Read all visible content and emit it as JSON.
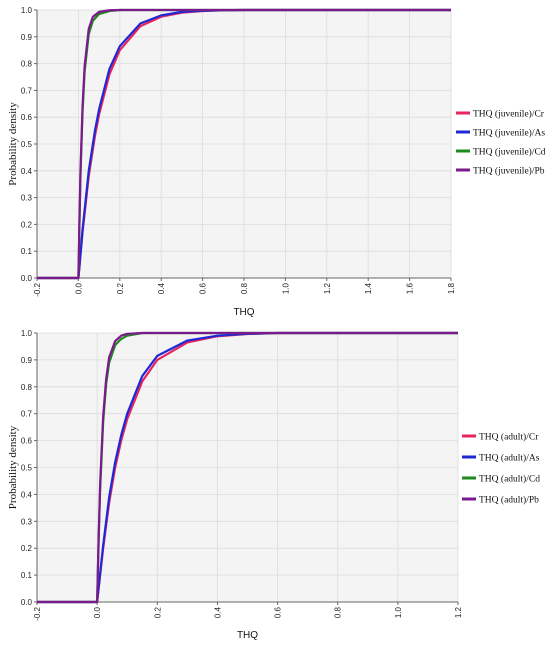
{
  "chart_data": [
    {
      "type": "line",
      "xlabel": "THQ",
      "ylabel": "Probability density",
      "xlim": [
        -0.2,
        1.8
      ],
      "ylim": [
        0,
        1
      ],
      "xticks": [
        -0.2,
        0.0,
        0.2,
        0.4,
        0.6,
        0.8,
        1.0,
        1.2,
        1.4,
        1.6,
        1.8
      ],
      "xtick_labels": [
        "-0.2",
        "0.0",
        "0.2",
        "0.4",
        "0.6",
        "0.8",
        "1.0",
        "1.2",
        "1.4",
        "1.6",
        "1.8"
      ],
      "yticks": [
        0,
        0.1,
        0.2,
        0.3,
        0.4,
        0.5,
        0.6,
        0.7,
        0.8,
        0.9,
        1.0
      ],
      "ytick_labels": [
        "0.0",
        "0.1",
        "0.2",
        "0.3",
        "0.4",
        "0.5",
        "0.6",
        "0.7",
        "0.8",
        "0.9",
        "1.0"
      ],
      "grid": true,
      "legend_position": "right",
      "series": [
        {
          "name": "THQ (juvenile)/Cr",
          "color": "#e8245c",
          "x": [
            -0.2,
            0.0,
            0.005,
            0.02,
            0.05,
            0.08,
            0.1,
            0.15,
            0.2,
            0.3,
            0.4,
            0.5,
            0.6,
            0.7,
            0.8,
            1.8
          ],
          "y": [
            0.0,
            0.0,
            0.04,
            0.17,
            0.38,
            0.53,
            0.61,
            0.76,
            0.85,
            0.94,
            0.975,
            0.99,
            0.996,
            0.999,
            1.0,
            1.0
          ]
        },
        {
          "name": "THQ (juvenile)/As",
          "color": "#1f28d6",
          "x": [
            -0.2,
            0.0,
            0.005,
            0.02,
            0.05,
            0.08,
            0.1,
            0.15,
            0.2,
            0.3,
            0.4,
            0.5,
            0.6,
            0.7,
            0.8,
            1.8
          ],
          "y": [
            0.0,
            0.0,
            0.045,
            0.18,
            0.4,
            0.55,
            0.63,
            0.78,
            0.865,
            0.95,
            0.98,
            0.993,
            0.997,
            0.999,
            1.0,
            1.0
          ]
        },
        {
          "name": "THQ (juvenile)/Cd",
          "color": "#1e8a1e",
          "x": [
            -0.2,
            0.0,
            0.005,
            0.01,
            0.02,
            0.03,
            0.05,
            0.07,
            0.1,
            0.15,
            0.2,
            1.8
          ],
          "y": [
            0.0,
            0.0,
            0.2,
            0.38,
            0.62,
            0.77,
            0.91,
            0.96,
            0.985,
            0.996,
            1.0,
            1.0
          ]
        },
        {
          "name": "THQ (juvenile)/Pb",
          "color": "#7b1a8c",
          "x": [
            -0.2,
            0.0,
            0.005,
            0.01,
            0.02,
            0.03,
            0.05,
            0.07,
            0.1,
            0.15,
            0.2,
            1.8
          ],
          "y": [
            0.0,
            0.0,
            0.21,
            0.4,
            0.64,
            0.79,
            0.93,
            0.975,
            0.993,
            0.999,
            1.0,
            1.0
          ]
        }
      ]
    },
    {
      "type": "line",
      "xlabel": "THQ",
      "ylabel": "Probability density",
      "xlim": [
        -0.2,
        1.2
      ],
      "ylim": [
        0,
        1
      ],
      "xticks": [
        -0.2,
        0.0,
        0.2,
        0.4,
        0.6,
        0.8,
        1.0,
        1.2
      ],
      "xtick_labels": [
        "-0.2",
        "0.0",
        "0.2",
        "0.4",
        "0.6",
        "0.8",
        "1.0",
        "1.2"
      ],
      "yticks": [
        0,
        0.1,
        0.2,
        0.3,
        0.4,
        0.5,
        0.6,
        0.7,
        0.8,
        0.9,
        1.0
      ],
      "ytick_labels": [
        "0.0",
        "0.1",
        "0.2",
        "0.3",
        "0.4",
        "0.5",
        "0.6",
        "0.7",
        "0.8",
        "0.9",
        "1.0"
      ],
      "grid": true,
      "legend_position": "right",
      "series": [
        {
          "name": "THQ (adult)/Cr",
          "color": "#e8245c",
          "x": [
            -0.2,
            0.0,
            0.005,
            0.02,
            0.04,
            0.06,
            0.08,
            0.1,
            0.15,
            0.2,
            0.3,
            0.4,
            0.5,
            0.6,
            1.2
          ],
          "y": [
            0.0,
            0.0,
            0.05,
            0.2,
            0.37,
            0.5,
            0.6,
            0.68,
            0.82,
            0.9,
            0.965,
            0.988,
            0.996,
            1.0,
            1.0
          ]
        },
        {
          "name": "THQ (adult)/As",
          "color": "#1f28d6",
          "x": [
            -0.2,
            0.0,
            0.005,
            0.02,
            0.04,
            0.06,
            0.08,
            0.1,
            0.15,
            0.2,
            0.3,
            0.4,
            0.5,
            0.6,
            1.2
          ],
          "y": [
            0.0,
            0.0,
            0.055,
            0.21,
            0.39,
            0.52,
            0.62,
            0.7,
            0.84,
            0.915,
            0.972,
            0.99,
            0.997,
            1.0,
            1.0
          ]
        },
        {
          "name": "THQ (adult)/Cd",
          "color": "#1e8a1e",
          "x": [
            -0.2,
            0.0,
            0.005,
            0.01,
            0.02,
            0.03,
            0.04,
            0.06,
            0.08,
            0.1,
            0.15,
            1.2
          ],
          "y": [
            0.0,
            0.0,
            0.23,
            0.42,
            0.67,
            0.81,
            0.89,
            0.955,
            0.978,
            0.99,
            1.0,
            1.0
          ]
        },
        {
          "name": "THQ (adult)/Pb",
          "color": "#7b1a8c",
          "x": [
            -0.2,
            0.0,
            0.005,
            0.01,
            0.02,
            0.03,
            0.04,
            0.06,
            0.08,
            0.1,
            0.15,
            1.2
          ],
          "y": [
            0.0,
            0.0,
            0.24,
            0.44,
            0.69,
            0.83,
            0.91,
            0.97,
            0.99,
            0.997,
            1.0,
            1.0
          ]
        }
      ]
    }
  ]
}
